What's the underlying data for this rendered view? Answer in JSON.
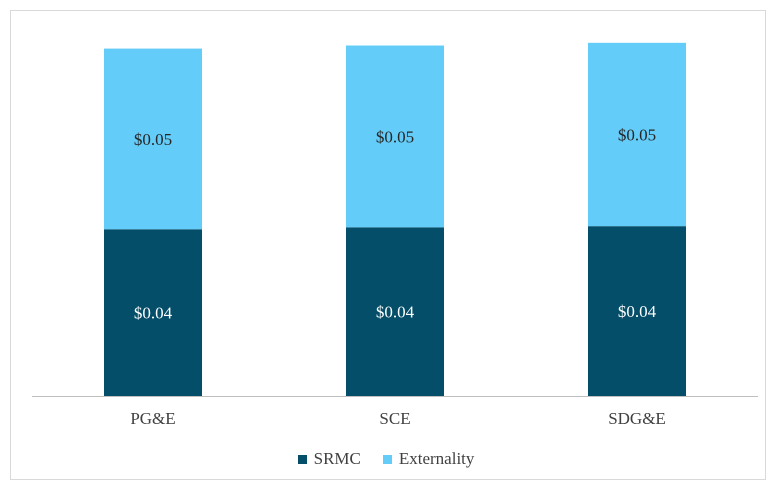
{
  "chart_data": {
    "type": "bar",
    "stacked": true,
    "categories": [
      "PG&E",
      "SCE",
      "SDG&E"
    ],
    "series": [
      {
        "name": "SRMC",
        "color": "#044e6a",
        "label_color": "#ffffff",
        "values": [
          0.0432,
          0.0437,
          0.044
        ],
        "labels": [
          "$0.04",
          "$0.04",
          "$0.04"
        ]
      },
      {
        "name": "Externality",
        "color": "#63ccf8",
        "label_color": "#262626",
        "values": [
          0.0468,
          0.0471,
          0.0475
        ],
        "labels": [
          "$0.05",
          "$0.05",
          "$0.05"
        ]
      }
    ],
    "title": "",
    "xlabel": "",
    "ylabel": "",
    "ylim": [
      0,
      0.1
    ],
    "grid": false,
    "legend_position": "bottom"
  }
}
